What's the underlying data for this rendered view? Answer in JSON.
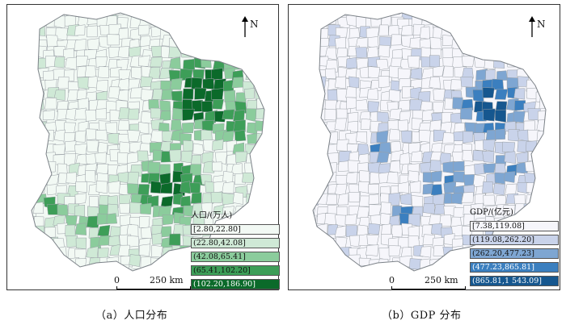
{
  "north_label": "N",
  "scale": {
    "zero": "0",
    "distance": "250 km"
  },
  "panels": {
    "a": {
      "legend_title": "人口/(万人)",
      "legend": [
        {
          "label": "[2.80,22.80]",
          "color": "#f2f9f4"
        },
        {
          "label": "(22.80,42.08]",
          "color": "#cfe9d6"
        },
        {
          "label": "(42.08,65.41]",
          "color": "#8bcc9c"
        },
        {
          "label": "(65.41,102.20]",
          "color": "#3d9e58"
        },
        {
          "label": "(102.20,186.90]",
          "color": "#0b6a2a"
        }
      ],
      "caption": "（a）人口分布"
    },
    "b": {
      "legend_title": "GDP/(亿元)",
      "legend": [
        {
          "label": "[7.38,119.08]",
          "color": "#f6f6fb"
        },
        {
          "label": "(119.08,262.20]",
          "color": "#c9d3ea"
        },
        {
          "label": "(262.20,477.23]",
          "color": "#7ea6d2"
        },
        {
          "label": "(477.23,865.81]",
          "color": "#3b7fbf"
        },
        {
          "label": "(865.81,1 543.09]",
          "color": "#16578f"
        }
      ],
      "caption": "（b）GDP 分布"
    }
  }
}
